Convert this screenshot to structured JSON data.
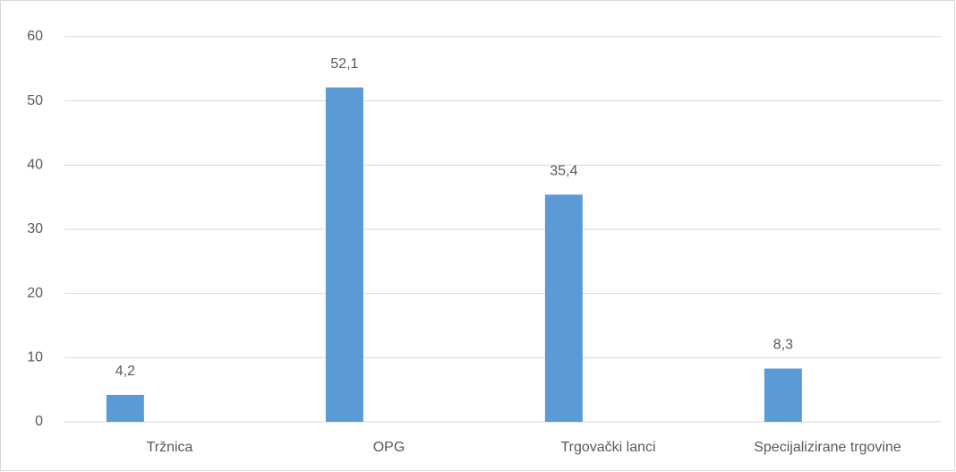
{
  "chart_data": {
    "type": "bar",
    "categories": [
      "Tržnica",
      "OPG",
      "Trgovački lanci",
      "Specijalizirane trgovine"
    ],
    "values": [
      4.2,
      52.1,
      35.4,
      8.3
    ],
    "value_labels": [
      "4,2",
      "52,1",
      "35,4",
      "8,3"
    ],
    "color": "#5b9bd5",
    "ylim": [
      0,
      60
    ],
    "yticks": [
      0,
      10,
      20,
      30,
      40,
      50,
      60
    ],
    "grid": true
  }
}
